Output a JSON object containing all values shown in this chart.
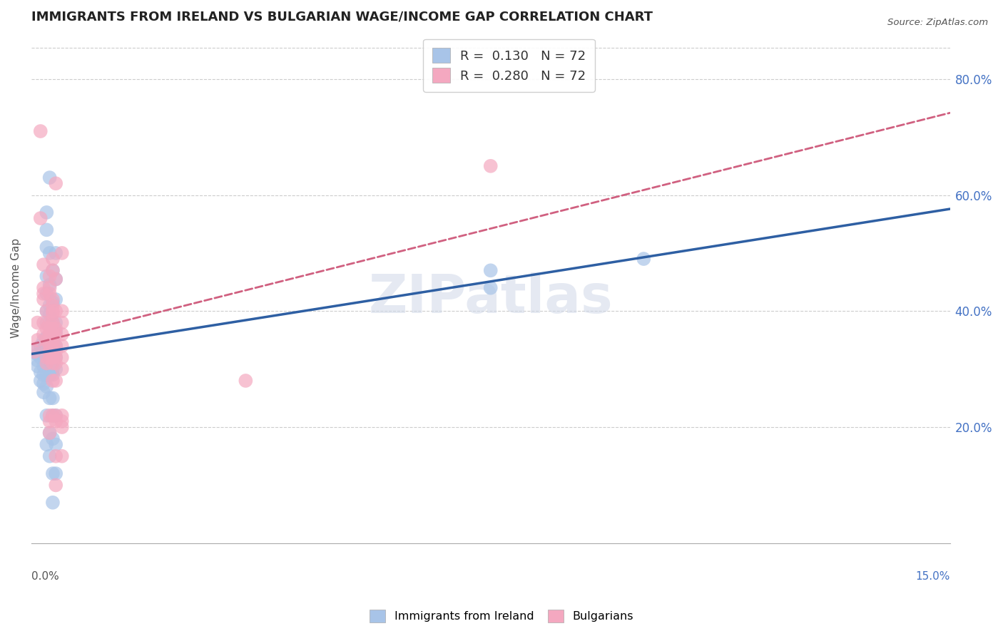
{
  "title": "IMMIGRANTS FROM IRELAND VS BULGARIAN WAGE/INCOME GAP CORRELATION CHART",
  "source": "Source: ZipAtlas.com",
  "ylabel": "Wage/Income Gap",
  "right_yticks": [
    "80.0%",
    "60.0%",
    "40.0%",
    "20.0%"
  ],
  "right_ytick_vals": [
    0.8,
    0.6,
    0.4,
    0.2
  ],
  "color_ireland": "#a8c4e8",
  "color_bulgaria": "#f4a8c0",
  "line_color_ireland": "#2e5fa3",
  "line_color_bulgaria": "#d06080",
  "background_color": "#ffffff",
  "watermark": "ZIPatlas",
  "xmin": 0.0,
  "xmax": 0.15,
  "ymin": 0.0,
  "ymax": 0.88,
  "ireland_points": [
    [
      0.0005,
      0.33
    ],
    [
      0.001,
      0.325
    ],
    [
      0.001,
      0.315
    ],
    [
      0.001,
      0.305
    ],
    [
      0.0015,
      0.34
    ],
    [
      0.0015,
      0.32
    ],
    [
      0.0015,
      0.295
    ],
    [
      0.0015,
      0.28
    ],
    [
      0.002,
      0.35
    ],
    [
      0.002,
      0.335
    ],
    [
      0.002,
      0.32
    ],
    [
      0.002,
      0.305
    ],
    [
      0.002,
      0.29
    ],
    [
      0.002,
      0.275
    ],
    [
      0.002,
      0.26
    ],
    [
      0.0025,
      0.57
    ],
    [
      0.0025,
      0.54
    ],
    [
      0.0025,
      0.51
    ],
    [
      0.0025,
      0.46
    ],
    [
      0.0025,
      0.43
    ],
    [
      0.0025,
      0.4
    ],
    [
      0.0025,
      0.38
    ],
    [
      0.0025,
      0.355
    ],
    [
      0.0025,
      0.34
    ],
    [
      0.0025,
      0.325
    ],
    [
      0.0025,
      0.31
    ],
    [
      0.0025,
      0.29
    ],
    [
      0.0025,
      0.27
    ],
    [
      0.0025,
      0.22
    ],
    [
      0.0025,
      0.17
    ],
    [
      0.003,
      0.63
    ],
    [
      0.003,
      0.5
    ],
    [
      0.003,
      0.445
    ],
    [
      0.003,
      0.41
    ],
    [
      0.003,
      0.395
    ],
    [
      0.003,
      0.375
    ],
    [
      0.003,
      0.355
    ],
    [
      0.003,
      0.34
    ],
    [
      0.003,
      0.325
    ],
    [
      0.003,
      0.3
    ],
    [
      0.003,
      0.29
    ],
    [
      0.003,
      0.25
    ],
    [
      0.003,
      0.19
    ],
    [
      0.003,
      0.15
    ],
    [
      0.0035,
      0.47
    ],
    [
      0.0035,
      0.415
    ],
    [
      0.0035,
      0.38
    ],
    [
      0.0035,
      0.365
    ],
    [
      0.0035,
      0.355
    ],
    [
      0.0035,
      0.345
    ],
    [
      0.0035,
      0.33
    ],
    [
      0.0035,
      0.32
    ],
    [
      0.0035,
      0.31
    ],
    [
      0.0035,
      0.3
    ],
    [
      0.0035,
      0.29
    ],
    [
      0.0035,
      0.25
    ],
    [
      0.0035,
      0.22
    ],
    [
      0.0035,
      0.18
    ],
    [
      0.0035,
      0.12
    ],
    [
      0.0035,
      0.07
    ],
    [
      0.004,
      0.5
    ],
    [
      0.004,
      0.455
    ],
    [
      0.004,
      0.42
    ],
    [
      0.004,
      0.38
    ],
    [
      0.004,
      0.365
    ],
    [
      0.004,
      0.34
    ],
    [
      0.004,
      0.32
    ],
    [
      0.004,
      0.3
    ],
    [
      0.004,
      0.22
    ],
    [
      0.004,
      0.17
    ],
    [
      0.004,
      0.12
    ],
    [
      0.075,
      0.47
    ],
    [
      0.075,
      0.44
    ],
    [
      0.1,
      0.49
    ]
  ],
  "bulgaria_points": [
    [
      0.0005,
      0.33
    ],
    [
      0.001,
      0.38
    ],
    [
      0.001,
      0.35
    ],
    [
      0.0015,
      0.71
    ],
    [
      0.0015,
      0.56
    ],
    [
      0.002,
      0.48
    ],
    [
      0.002,
      0.44
    ],
    [
      0.002,
      0.43
    ],
    [
      0.002,
      0.42
    ],
    [
      0.002,
      0.38
    ],
    [
      0.002,
      0.36
    ],
    [
      0.0025,
      0.4
    ],
    [
      0.0025,
      0.37
    ],
    [
      0.0025,
      0.35
    ],
    [
      0.0025,
      0.34
    ],
    [
      0.0025,
      0.32
    ],
    [
      0.0025,
      0.31
    ],
    [
      0.003,
      0.46
    ],
    [
      0.003,
      0.44
    ],
    [
      0.003,
      0.43
    ],
    [
      0.003,
      0.38
    ],
    [
      0.003,
      0.37
    ],
    [
      0.003,
      0.36
    ],
    [
      0.003,
      0.35
    ],
    [
      0.003,
      0.34
    ],
    [
      0.003,
      0.33
    ],
    [
      0.003,
      0.32
    ],
    [
      0.003,
      0.22
    ],
    [
      0.003,
      0.21
    ],
    [
      0.003,
      0.19
    ],
    [
      0.0035,
      0.49
    ],
    [
      0.0035,
      0.47
    ],
    [
      0.0035,
      0.42
    ],
    [
      0.0035,
      0.41
    ],
    [
      0.0035,
      0.4
    ],
    [
      0.0035,
      0.395
    ],
    [
      0.0035,
      0.38
    ],
    [
      0.0035,
      0.37
    ],
    [
      0.0035,
      0.36
    ],
    [
      0.0035,
      0.35
    ],
    [
      0.0035,
      0.34
    ],
    [
      0.0035,
      0.33
    ],
    [
      0.0035,
      0.32
    ],
    [
      0.0035,
      0.31
    ],
    [
      0.0035,
      0.28
    ],
    [
      0.0035,
      0.22
    ],
    [
      0.004,
      0.62
    ],
    [
      0.004,
      0.455
    ],
    [
      0.004,
      0.4
    ],
    [
      0.004,
      0.37
    ],
    [
      0.004,
      0.36
    ],
    [
      0.004,
      0.34
    ],
    [
      0.004,
      0.33
    ],
    [
      0.004,
      0.32
    ],
    [
      0.004,
      0.31
    ],
    [
      0.004,
      0.28
    ],
    [
      0.004,
      0.22
    ],
    [
      0.004,
      0.21
    ],
    [
      0.004,
      0.15
    ],
    [
      0.004,
      0.1
    ],
    [
      0.005,
      0.5
    ],
    [
      0.005,
      0.4
    ],
    [
      0.005,
      0.38
    ],
    [
      0.005,
      0.36
    ],
    [
      0.005,
      0.34
    ],
    [
      0.005,
      0.32
    ],
    [
      0.005,
      0.3
    ],
    [
      0.005,
      0.22
    ],
    [
      0.005,
      0.21
    ],
    [
      0.005,
      0.2
    ],
    [
      0.005,
      0.15
    ],
    [
      0.035,
      0.28
    ],
    [
      0.075,
      0.65
    ]
  ]
}
